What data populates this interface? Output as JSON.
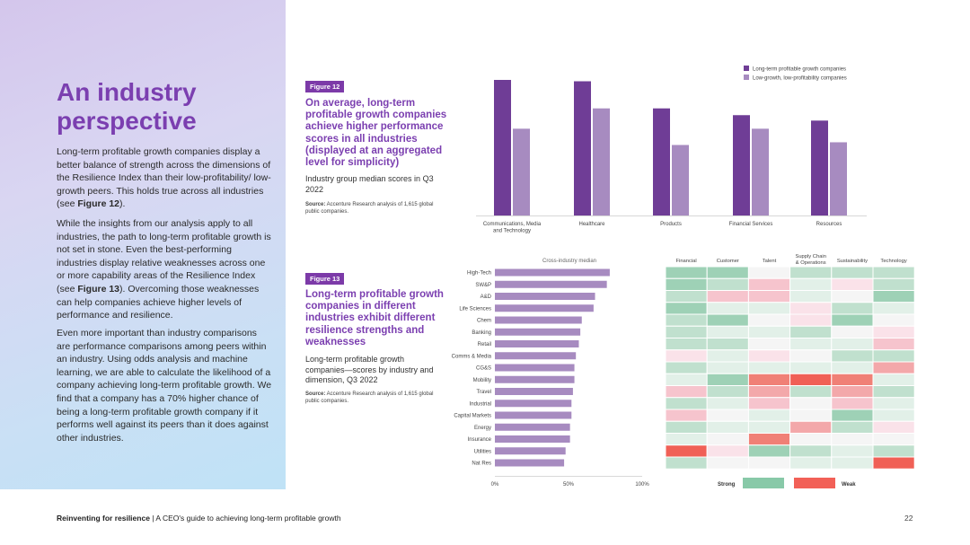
{
  "page": {
    "title": "An industry perspective",
    "paragraph1": "Long-term profitable growth companies display a better balance of strength across the dimensions of the Resilience Index than their low-profitability/ low-growth peers. This holds true across all industries (see ",
    "paragraph1_ref": "Figure 12",
    "paragraph1_end": ").",
    "paragraph2": "While the insights from our analysis apply to all industries, the path to long-term profitable growth is not set in stone. Even the best-performing industries display relative weaknesses across one or more capability areas of the Resilience Index (see ",
    "paragraph2_ref": "Figure 13",
    "paragraph2_end": "). Overcoming those weaknesses can help companies achieve higher levels of performance and resilience.",
    "paragraph3": "Even more important than industry comparisons are performance comparisons among peers within an industry. Using odds analysis and machine learning, we are able to calculate the likelihood of a company achieving long-term profitable growth. We find that a company has a 70% higher chance of being a long-term profitable growth company if it performs well against its peers than it does against other industries."
  },
  "figure12": {
    "badge": "Figure 12",
    "title": "On average, long-term profitable growth companies achieve higher performance scores in all industries (displayed at an aggregated level for simplicity)",
    "subtitle": "Industry group median scores in Q3 2022",
    "source_label": "Source:",
    "source_text": " Accenture Research analysis of 1,615 global public companies."
  },
  "figure13": {
    "badge": "Figure 13",
    "title": "Long-term profitable growth companies in different industries exhibit different resilience strengths and weaknesses",
    "subtitle": "Long-term profitable growth companies—scores by industry and dimension, Q3 2022",
    "source_label": "Source:",
    "source_text": " Accenture Research analysis of 1,615 global public companies."
  },
  "chart_data": [
    {
      "type": "bar",
      "categories": [
        "Communications, Media and Technology",
        "Healthcare",
        "Products",
        "Financial Services",
        "Resources"
      ],
      "category_lines": [
        [
          "Communications, Media",
          "and Technology"
        ],
        [
          "Healthcare"
        ],
        [
          "Products"
        ],
        [
          "Financial Services"
        ],
        [
          "Resources"
        ]
      ],
      "series": [
        {
          "name": "Long-term profitable growth companies",
          "values": [
            100,
            99,
            79,
            74,
            70
          ],
          "color": "#6f3d96"
        },
        {
          "name": "Low-growth, low-profitability companies",
          "values": [
            64,
            79,
            52,
            64,
            54
          ],
          "color": "#a78bc0"
        }
      ],
      "ylim": [
        0,
        100
      ],
      "legend": "top-right",
      "grid": false
    },
    {
      "type": "bar",
      "orientation": "horizontal",
      "title": "Cross-industry median",
      "categories": [
        "High-Tech",
        "SW&P",
        "A&D",
        "Life Sciences",
        "Chem",
        "Banking",
        "Retail",
        "Comms & Media",
        "CG&S",
        "Mobility",
        "Travel",
        "Industrial",
        "Capital Markets",
        "Energy",
        "Insurance",
        "Utilities",
        "Nat Res"
      ],
      "values": [
        78,
        76,
        68,
        67,
        59,
        58,
        57,
        55,
        54,
        54,
        53,
        52,
        52,
        51,
        51,
        48,
        47
      ],
      "color": "#a78bc0",
      "xlim": [
        0,
        100
      ],
      "xticks": [
        "0%",
        "50%",
        "100%"
      ],
      "grid": false
    },
    {
      "type": "heatmap",
      "columns": [
        "Financial",
        "Customer",
        "Talent",
        "Supply Chain & Operations",
        "Sustainability",
        "Technology"
      ],
      "column_lines": [
        [
          "Financial"
        ],
        [
          "Customer"
        ],
        [
          "Talent"
        ],
        [
          "Supply Chain",
          "& Operations"
        ],
        [
          "Sustainability"
        ],
        [
          "Technology"
        ]
      ],
      "rows": [
        "High-Tech",
        "SW&P",
        "A&D",
        "Life Sciences",
        "Chem",
        "Banking",
        "Retail",
        "Comms & Media",
        "CG&S",
        "Mobility",
        "Travel",
        "Industrial",
        "Capital Markets",
        "Energy",
        "Insurance",
        "Utilities",
        "Nat Res"
      ],
      "scale_note": "positive = strong, negative = weak",
      "values": [
        [
          3,
          3,
          0,
          2,
          2,
          2
        ],
        [
          3,
          2,
          -2,
          1,
          -1,
          2
        ],
        [
          2,
          -2,
          -2,
          1,
          0,
          3
        ],
        [
          3,
          1,
          1,
          -1,
          2,
          1
        ],
        [
          2,
          3,
          0,
          -1,
          3,
          0
        ],
        [
          2,
          1,
          1,
          2,
          0,
          -1
        ],
        [
          2,
          2,
          0,
          1,
          1,
          -2
        ],
        [
          -1,
          1,
          -1,
          0,
          2,
          2
        ],
        [
          2,
          1,
          1,
          1,
          1,
          -3
        ],
        [
          1,
          3,
          -4,
          -5,
          -4,
          1
        ],
        [
          -2,
          2,
          -3,
          2,
          -3,
          2
        ],
        [
          2,
          1,
          -2,
          0,
          -2,
          1
        ],
        [
          -2,
          0,
          1,
          0,
          3,
          1
        ],
        [
          2,
          1,
          1,
          -3,
          2,
          -1
        ],
        [
          1,
          0,
          -4,
          0,
          0,
          0
        ],
        [
          -5,
          -1,
          3,
          2,
          1,
          2
        ],
        [
          2,
          0,
          0,
          1,
          1,
          -5
        ]
      ],
      "legend_strong": "Strong",
      "legend_weak": "Weak",
      "strong_color": "#88c9a8",
      "weak_color": "#f26057"
    }
  ],
  "footer": {
    "bold": "Reinventing for resilience",
    "separator": " | ",
    "text": "A CEO's guide to achieving long-term profitable growth",
    "page_number": "22"
  }
}
